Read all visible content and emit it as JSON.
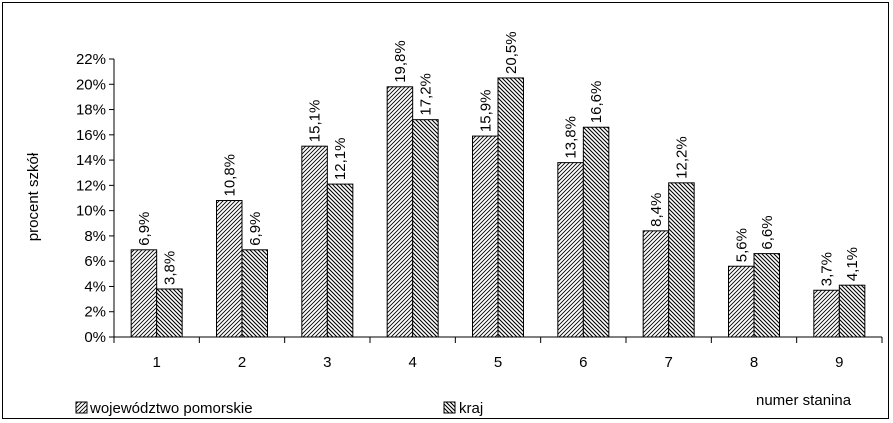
{
  "chart_data": {
    "type": "bar",
    "title": "",
    "xlabel": "numer stanina",
    "ylabel": "procent szkół",
    "categories": [
      "1",
      "2",
      "3",
      "4",
      "5",
      "6",
      "7",
      "8",
      "9"
    ],
    "series": [
      {
        "name": "województwo pomorskie",
        "values": [
          6.9,
          10.8,
          15.1,
          19.8,
          15.9,
          13.8,
          8.4,
          5.6,
          3.7
        ],
        "labels": [
          "6,9%",
          "10,8%",
          "15,1%",
          "19,8%",
          "15,9%",
          "13,8%",
          "8,4%",
          "5,6%",
          "3,7%"
        ],
        "pattern": "diagonal-left"
      },
      {
        "name": "kraj",
        "values": [
          3.8,
          6.9,
          12.1,
          17.2,
          20.5,
          16.6,
          12.2,
          6.6,
          4.1
        ],
        "labels": [
          "3,8%",
          "6,9%",
          "12,1%",
          "17,2%",
          "20,5%",
          "16,6%",
          "12,2%",
          "6,6%",
          "4,1%"
        ],
        "pattern": "diagonal-right"
      }
    ],
    "ylim": [
      0,
      22
    ],
    "yticks": [
      0,
      2,
      4,
      6,
      8,
      10,
      12,
      14,
      16,
      18,
      20,
      22
    ],
    "ytick_labels": [
      "0%",
      "2%",
      "4%",
      "6%",
      "8%",
      "10%",
      "12%",
      "14%",
      "16%",
      "18%",
      "20%",
      "22%"
    ],
    "grid": false,
    "legend_position": "bottom-left"
  }
}
